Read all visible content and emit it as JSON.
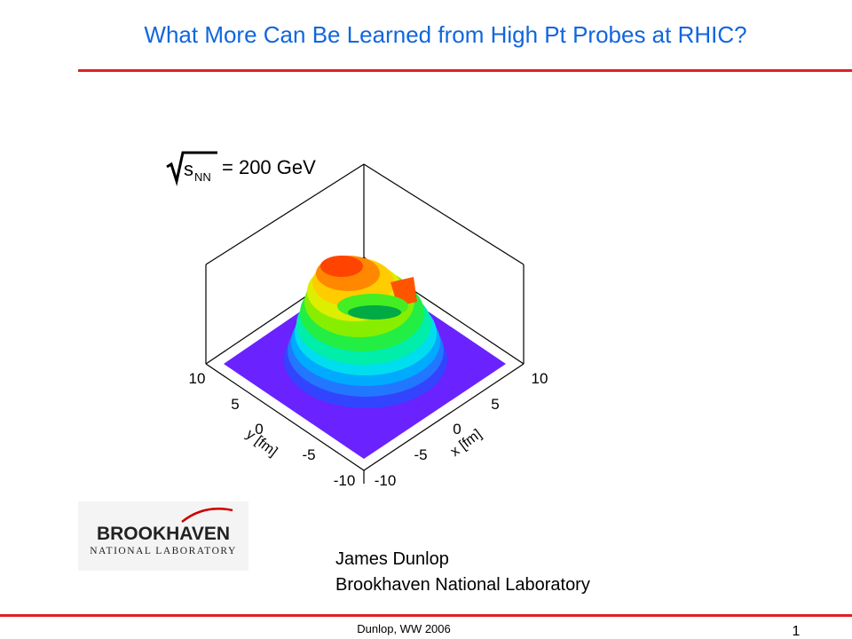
{
  "header": {
    "title": "What More Can Be Learned from High Pt Probes at RHIC?"
  },
  "figure": {
    "energy_var": "s",
    "energy_sub": "NN",
    "energy_label": "= 200 GeV",
    "y_axis": {
      "label": "y [fm]",
      "ticks": [
        "10",
        "5",
        "0",
        "-5",
        "-10"
      ]
    },
    "x_axis": {
      "label": "x [fm]",
      "ticks": [
        "-10",
        "-5",
        "0",
        "5",
        "10"
      ]
    }
  },
  "logo": {
    "name": "BROOKHAVEN",
    "subtitle": "NATIONAL LABORATORY"
  },
  "author": {
    "name": "James Dunlop",
    "affiliation": "Brookhaven National Laboratory"
  },
  "footer": {
    "text": "Dunlop, WW 2006",
    "page": "1"
  }
}
